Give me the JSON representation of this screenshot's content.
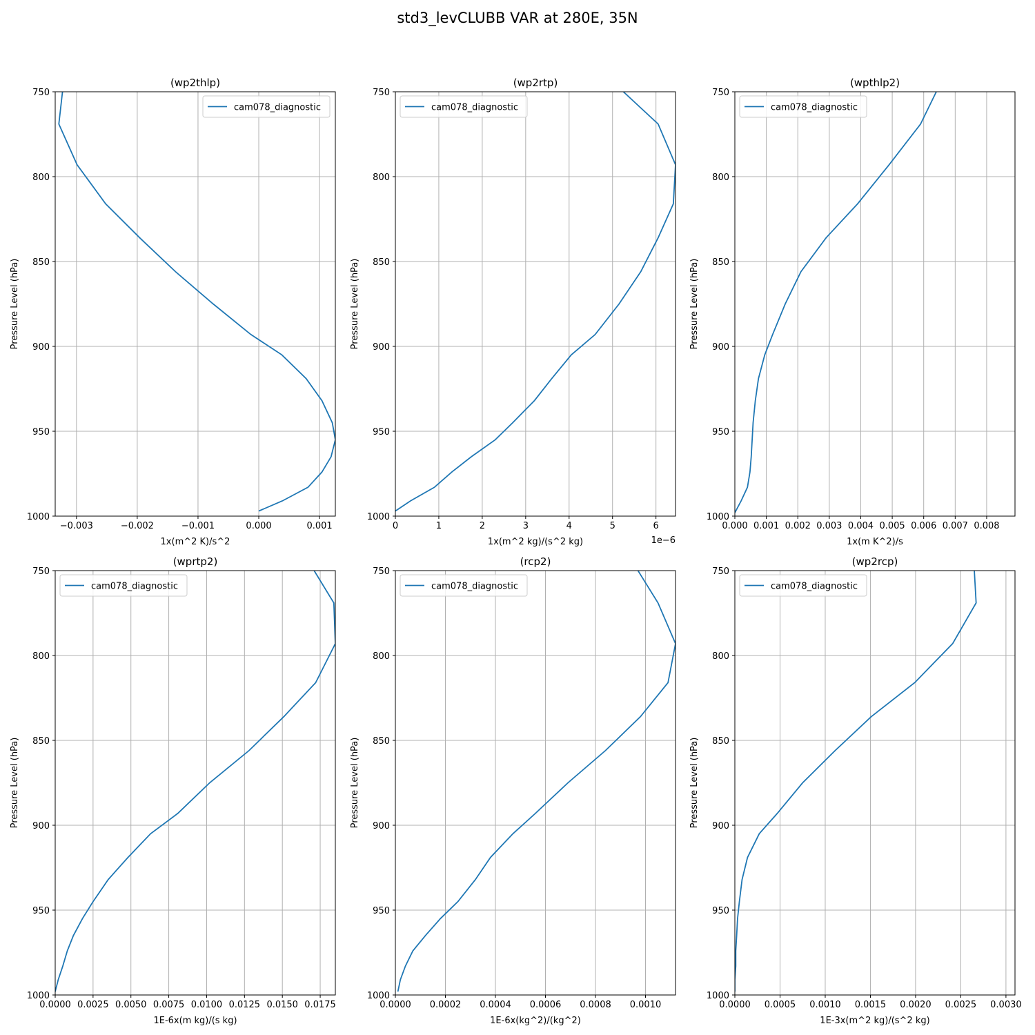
{
  "title": "std3_levCLUBB VAR at 280E, 35N",
  "style": {
    "line_color": "#1f77b4",
    "grid_color": "#b0b0b0"
  },
  "chart_data": [
    {
      "type": "line",
      "title": "(wp2thlp)",
      "xlabel": "1x(m^2 K)/s^2",
      "ylabel": "Pressure Level (hPa)",
      "xlim": [
        -0.00335,
        0.00126
      ],
      "ylim": [
        1000,
        750
      ],
      "y_inverted": true,
      "xticks": [
        -0.003,
        -0.002,
        -0.001,
        0.0,
        0.001
      ],
      "xtick_labels": [
        "−0.003",
        "−0.002",
        "−0.001",
        "0.000",
        "0.001"
      ],
      "yticks": [
        750,
        800,
        850,
        900,
        950,
        1000
      ],
      "offset_text": "",
      "grid": true,
      "legend_position": "top-right",
      "series": [
        {
          "name": "cam078_diagnostic",
          "x": [
            -0.00323,
            -0.00329,
            -0.00299,
            -0.00252,
            -0.00196,
            -0.00137,
            -0.00075,
            -0.00013,
            0.00038,
            0.00078,
            0.00104,
            0.00121,
            0.00126,
            0.00119,
            0.00104,
            0.00081,
            0.00039,
            0.0
          ],
          "y": [
            750,
            769,
            793,
            816,
            836,
            856,
            875,
            893,
            905,
            919,
            932,
            945,
            955,
            965,
            974,
            983,
            991,
            997
          ]
        }
      ]
    },
    {
      "type": "line",
      "title": "(wp2rtp)",
      "xlabel": "1x(m^2 kg)/(s^2 kg)",
      "ylabel": "Pressure Level (hPa)",
      "xlim": [
        0,
        6.45
      ],
      "ylim": [
        1000,
        750
      ],
      "y_inverted": true,
      "xticks": [
        0,
        1,
        2,
        3,
        4,
        5,
        6
      ],
      "xtick_labels": [
        "0",
        "1",
        "2",
        "3",
        "4",
        "5",
        "6"
      ],
      "yticks": [
        750,
        800,
        850,
        900,
        950,
        1000
      ],
      "offset_text": "1e−6",
      "grid": true,
      "legend_position": "top-left",
      "series": [
        {
          "name": "cam078_diagnostic",
          "x": [
            5.25,
            6.05,
            6.45,
            6.4,
            6.05,
            5.65,
            5.15,
            4.6,
            4.05,
            3.6,
            3.2,
            2.7,
            2.3,
            1.75,
            1.3,
            0.9,
            0.35,
            0.0
          ],
          "y": [
            750,
            769,
            793,
            816,
            836,
            856,
            875,
            893,
            905,
            919,
            932,
            945,
            955,
            965,
            974,
            983,
            991,
            997
          ]
        }
      ]
    },
    {
      "type": "line",
      "title": "(wpthlp2)",
      "xlabel": "1x(m K^2)/s",
      "ylabel": "Pressure Level (hPa)",
      "xlim": [
        0,
        0.0089
      ],
      "ylim": [
        1000,
        750
      ],
      "y_inverted": true,
      "xticks": [
        0,
        0.001,
        0.002,
        0.003,
        0.004,
        0.005,
        0.006,
        0.007,
        0.008
      ],
      "xtick_labels": [
        "0.000",
        "0.001",
        "0.002",
        "0.003",
        "0.004",
        "0.005",
        "0.006",
        "0.007",
        "0.008"
      ],
      "yticks": [
        750,
        800,
        850,
        900,
        950,
        1000
      ],
      "offset_text": "",
      "grid": true,
      "legend_position": "top-left",
      "series": [
        {
          "name": "cam078_diagnostic",
          "x": [
            0.0064,
            0.0059,
            0.0049,
            0.0039,
            0.0029,
            0.0021,
            0.0016,
            0.0012,
            0.00095,
            0.00075,
            0.00065,
            0.00058,
            0.00055,
            0.00052,
            0.00048,
            0.0004,
            0.0002,
            0.0
          ],
          "y": [
            750,
            769,
            793,
            816,
            836,
            856,
            875,
            893,
            905,
            919,
            932,
            945,
            955,
            965,
            974,
            983,
            991,
            998
          ]
        }
      ]
    },
    {
      "type": "line",
      "title": "(wprtp2)",
      "xlabel": "1E-6x(m kg)/(s kg)",
      "ylabel": "Pressure Level (hPa)",
      "xlim": [
        0,
        0.0185
      ],
      "ylim": [
        1000,
        750
      ],
      "y_inverted": true,
      "xticks": [
        0,
        0.0025,
        0.005,
        0.0075,
        0.01,
        0.0125,
        0.015,
        0.0175
      ],
      "xtick_labels": [
        "0.0000",
        "0.0025",
        "0.0050",
        "0.0075",
        "0.0100",
        "0.0125",
        "0.0150",
        "0.0175"
      ],
      "yticks": [
        750,
        800,
        850,
        900,
        950,
        1000
      ],
      "offset_text": "",
      "grid": true,
      "legend_position": "top-left",
      "series": [
        {
          "name": "cam078_diagnostic",
          "x": [
            0.0171,
            0.0184,
            0.0185,
            0.0172,
            0.0151,
            0.0128,
            0.0102,
            0.0081,
            0.0063,
            0.0048,
            0.0035,
            0.0025,
            0.0018,
            0.0012,
            0.0008,
            0.0005,
            0.0002,
            0.0
          ],
          "y": [
            750,
            769,
            793,
            816,
            836,
            856,
            875,
            893,
            905,
            919,
            932,
            945,
            955,
            965,
            974,
            983,
            991,
            998
          ]
        }
      ]
    },
    {
      "type": "line",
      "title": "(rcp2)",
      "xlabel": "1E-6x(kg^2)/(kg^2)",
      "ylabel": "Pressure Level (hPa)",
      "xlim": [
        0,
        0.00112
      ],
      "ylim": [
        1000,
        750
      ],
      "y_inverted": true,
      "xticks": [
        0,
        0.0002,
        0.0004,
        0.0006,
        0.0008,
        0.001
      ],
      "xtick_labels": [
        "0.0000",
        "0.0002",
        "0.0004",
        "0.0006",
        "0.0008",
        "0.0010"
      ],
      "yticks": [
        750,
        800,
        850,
        900,
        950,
        1000
      ],
      "offset_text": "",
      "grid": true,
      "legend_position": "top-left",
      "series": [
        {
          "name": "cam078_diagnostic",
          "x": [
            0.00097,
            0.00105,
            0.00112,
            0.00109,
            0.00098,
            0.00084,
            0.00069,
            0.00056,
            0.00047,
            0.00038,
            0.00032,
            0.00025,
            0.00018,
            0.00012,
            7e-05,
            4e-05,
            2e-05,
            1e-05
          ],
          "y": [
            750,
            769,
            793,
            816,
            836,
            856,
            875,
            893,
            905,
            919,
            932,
            945,
            955,
            965,
            974,
            983,
            991,
            998
          ]
        }
      ]
    },
    {
      "type": "line",
      "title": "(wp2rcp)",
      "xlabel": "1E-3x(m^2 kg)/(s^2 kg)",
      "ylabel": "Pressure Level (hPa)",
      "xlim": [
        0,
        0.0031
      ],
      "ylim": [
        1000,
        750
      ],
      "y_inverted": true,
      "xticks": [
        0,
        0.0005,
        0.001,
        0.0015,
        0.002,
        0.0025,
        0.003
      ],
      "xtick_labels": [
        "0.0000",
        "0.0005",
        "0.0010",
        "0.0015",
        "0.0020",
        "0.0025",
        "0.0030"
      ],
      "yticks": [
        750,
        800,
        850,
        900,
        950,
        1000
      ],
      "offset_text": "",
      "grid": true,
      "legend_position": "top-left",
      "series": [
        {
          "name": "cam078_diagnostic",
          "x": [
            0.00265,
            0.00267,
            0.00241,
            0.00199,
            0.00151,
            0.00111,
            0.00075,
            0.00047,
            0.00027,
            0.00014,
            8e-05,
            5e-05,
            3e-05,
            2e-05,
            1e-05,
            1e-05,
            0.0,
            0.0
          ],
          "y": [
            750,
            769,
            793,
            816,
            836,
            856,
            875,
            893,
            905,
            919,
            932,
            945,
            955,
            965,
            974,
            983,
            991,
            998
          ]
        }
      ]
    }
  ]
}
